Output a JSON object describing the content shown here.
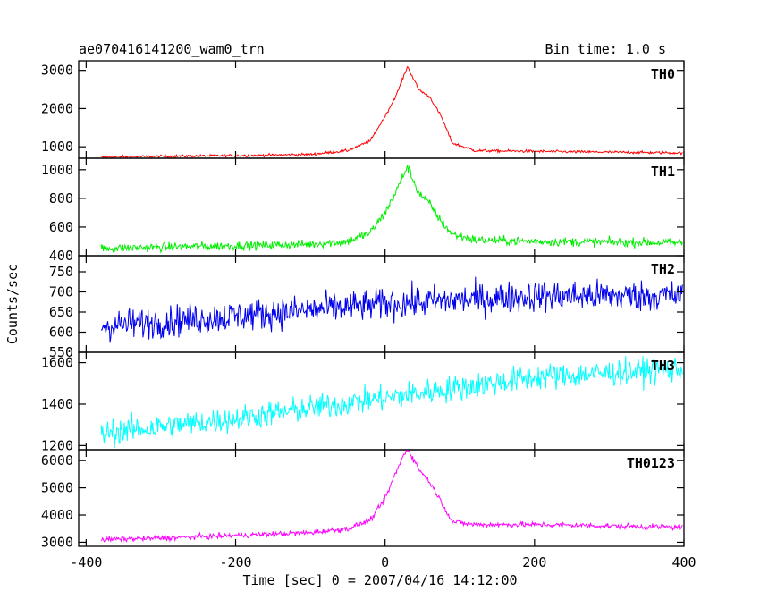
{
  "header": {
    "title": "ae070416141200_wam0_trn",
    "bin_time": "Bin time: 1.0 s"
  },
  "chart_data": {
    "type": "line",
    "xlabel": "Time [sec] 0 = 2007/04/16 14:12:00",
    "ylabel": "Counts/sec",
    "xlim": [
      -410,
      400
    ],
    "x_ticks": [
      "-400",
      "-200",
      "0",
      "200",
      "400"
    ],
    "x_tick_values": [
      -400,
      -200,
      0,
      200,
      400
    ],
    "data_range_x": [
      -380,
      398
    ],
    "grid": false,
    "panels": [
      {
        "name": "TH0",
        "color": "#ff0000",
        "ylim": [
          700,
          3250
        ],
        "yticks": [
          1000,
          2000,
          3000
        ],
        "ytick_labels": [
          "1000",
          "2000",
          "3000"
        ],
        "x": [
          -380,
          -300,
          -200,
          -100,
          -50,
          -20,
          0,
          15,
          25,
          30,
          35,
          45,
          60,
          75,
          90,
          120,
          200,
          300,
          398
        ],
        "values": [
          730,
          750,
          770,
          800,
          900,
          1150,
          1800,
          2350,
          2850,
          3100,
          2900,
          2500,
          2300,
          1800,
          1100,
          900,
          880,
          860,
          840
        ],
        "noise": 25
      },
      {
        "name": "TH1",
        "color": "#00ee00",
        "ylim": [
          400,
          1080
        ],
        "yticks": [
          400,
          600,
          800,
          1000
        ],
        "ytick_labels": [
          "400",
          "600",
          "800",
          "1000"
        ],
        "x": [
          -380,
          -300,
          -200,
          -100,
          -50,
          -20,
          0,
          15,
          25,
          30,
          35,
          45,
          60,
          75,
          90,
          120,
          200,
          300,
          398
        ],
        "values": [
          450,
          460,
          470,
          480,
          500,
          560,
          700,
          850,
          970,
          1020,
          960,
          840,
          760,
          640,
          550,
          510,
          500,
          495,
          490
        ],
        "noise": 22
      },
      {
        "name": "TH2",
        "color": "#0000ee",
        "ylim": [
          550,
          790
        ],
        "yticks": [
          550,
          600,
          650,
          700,
          750
        ],
        "ytick_labels": [
          "550",
          "600",
          "650",
          "700",
          "750"
        ],
        "x": [
          -380,
          -200,
          0,
          200,
          398
        ],
        "values": [
          615,
          640,
          670,
          690,
          690
        ],
        "noise": 28
      },
      {
        "name": "TH3",
        "color": "#00ffff",
        "ylim": [
          1180,
          1650
        ],
        "yticks": [
          1200,
          1400,
          1600
        ],
        "ytick_labels": [
          "1200",
          "1400",
          "1600"
        ],
        "x": [
          -380,
          -200,
          0,
          200,
          398
        ],
        "values": [
          1260,
          1330,
          1430,
          1530,
          1570
        ],
        "noise": 45
      },
      {
        "name": "TH0123",
        "color": "#ff00ff",
        "ylim": [
          2850,
          6400
        ],
        "yticks": [
          3000,
          4000,
          5000,
          6000
        ],
        "ytick_labels": [
          "3000",
          "4000",
          "5000",
          "6000"
        ],
        "x": [
          -380,
          -300,
          -200,
          -100,
          -50,
          -20,
          0,
          15,
          25,
          30,
          35,
          45,
          60,
          75,
          90,
          120,
          200,
          300,
          398
        ],
        "values": [
          3100,
          3150,
          3250,
          3350,
          3500,
          3800,
          4600,
          5600,
          6200,
          6450,
          6200,
          5700,
          5200,
          4500,
          3750,
          3650,
          3650,
          3600,
          3550
        ],
        "noise": 70
      }
    ]
  }
}
